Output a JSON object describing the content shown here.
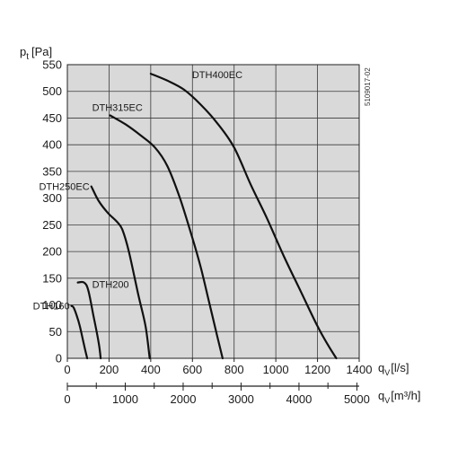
{
  "chart_data": {
    "type": "line",
    "ylabel_main": "p",
    "ylabel_sub": "t",
    "ylabel_unit": "[Pa]",
    "xlabel_main": "q",
    "xlabel_sub": "V",
    "xlabel_unit": "[l/s]",
    "x2label_main": "q",
    "x2label_sub": "V",
    "x2label_unit": "[m³/h]",
    "side_code": "5109017-02",
    "xlim": [
      0,
      1400
    ],
    "ylim": [
      0,
      550
    ],
    "x_ticks": [
      0,
      200,
      400,
      600,
      800,
      1000,
      1200,
      1400
    ],
    "y_ticks": [
      0,
      50,
      100,
      150,
      200,
      250,
      300,
      350,
      400,
      450,
      500,
      550
    ],
    "x2_ticks": [
      0,
      1000,
      2000,
      3000,
      4000,
      5000
    ],
    "x2_per_x": 3.6,
    "grid": true,
    "series": [
      {
        "name": "DTH160",
        "label_pos": "left",
        "points": [
          [
            20,
            98
          ],
          [
            30,
            95
          ],
          [
            45,
            80
          ],
          [
            60,
            60
          ],
          [
            80,
            25
          ],
          [
            95,
            0
          ]
        ]
      },
      {
        "name": "DTH200",
        "label_pos": "right",
        "points": [
          [
            50,
            142
          ],
          [
            80,
            142
          ],
          [
            100,
            128
          ],
          [
            125,
            80
          ],
          [
            150,
            30
          ],
          [
            160,
            0
          ]
        ]
      },
      {
        "name": "DTH250EC",
        "label_pos": "left",
        "points": [
          [
            115,
            322
          ],
          [
            150,
            295
          ],
          [
            195,
            272
          ],
          [
            240,
            255
          ],
          [
            265,
            240
          ],
          [
            295,
            200
          ],
          [
            340,
            120
          ],
          [
            375,
            60
          ],
          [
            395,
            0
          ]
        ]
      },
      {
        "name": "DTH315EC",
        "label_pos": "above",
        "points": [
          [
            205,
            455
          ],
          [
            280,
            438
          ],
          [
            350,
            418
          ],
          [
            420,
            395
          ],
          [
            480,
            360
          ],
          [
            540,
            300
          ],
          [
            600,
            225
          ],
          [
            640,
            170
          ],
          [
            680,
            105
          ],
          [
            720,
            40
          ],
          [
            745,
            0
          ]
        ]
      },
      {
        "name": "DTH400EC",
        "label_pos": "right",
        "points": [
          [
            400,
            533
          ],
          [
            480,
            520
          ],
          [
            560,
            503
          ],
          [
            640,
            475
          ],
          [
            720,
            440
          ],
          [
            800,
            395
          ],
          [
            880,
            325
          ],
          [
            960,
            260
          ],
          [
            1040,
            190
          ],
          [
            1120,
            125
          ],
          [
            1200,
            60
          ],
          [
            1250,
            25
          ],
          [
            1290,
            0
          ]
        ]
      }
    ]
  }
}
